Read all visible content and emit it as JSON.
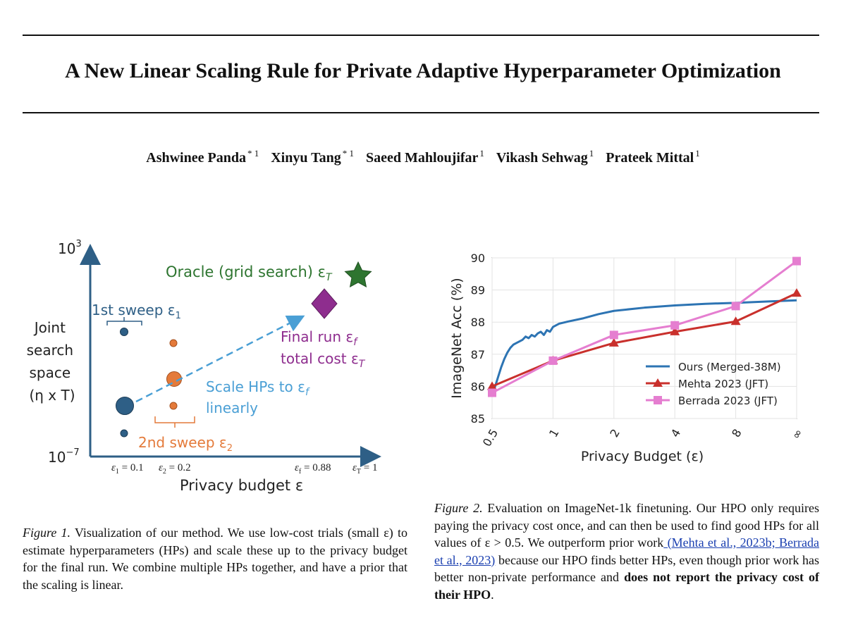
{
  "paper": {
    "title": "A New Linear Scaling Rule for Private Adaptive Hyperparameter Optimization",
    "authors": [
      {
        "name": "Ashwinee Panda",
        "affil": "* 1"
      },
      {
        "name": "Xinyu Tang",
        "affil": "* 1"
      },
      {
        "name": "Saeed Mahloujifar",
        "affil": "1"
      },
      {
        "name": "Vikash Sehwag",
        "affil": "1"
      },
      {
        "name": "Prateek Mittal",
        "affil": "1"
      }
    ]
  },
  "figure1": {
    "y_top_label": "10",
    "y_top_exp": "3",
    "y_bottom_label": "10",
    "y_bottom_exp": "−7",
    "y_axis_label": [
      "Joint",
      "search",
      "space",
      "(η x T)"
    ],
    "x_axis_label": "Privacy budget ε",
    "oracle_label": "Oracle (grid search) ε",
    "oracle_sub": "T",
    "sweep1_label": "1st sweep ε",
    "sweep1_sub": "1",
    "sweep2_label": "2nd sweep ε",
    "sweep2_sub": "2",
    "final_run_label": "Final run ε",
    "final_run_sub": "f",
    "total_cost_label": "total cost ε",
    "total_cost_sub": "T",
    "scale_label": "Scale HPs to ε",
    "scale_sub": "f",
    "linearly_label": "linearly",
    "x_ticks": [
      {
        "sym": "ε",
        "sub": "1",
        "val": " = 0.1"
      },
      {
        "sym": "ε",
        "sub": "2",
        "val": " = 0.2"
      },
      {
        "sym": "ε",
        "sub": "f",
        "val": " = 0.88"
      },
      {
        "sym": "ε",
        "sub": "T",
        "val": " = 1"
      }
    ],
    "colors": {
      "sweep1": "#2e5f86",
      "sweep2": "#e47a3a",
      "scale": "#4a9fd5",
      "final": "#8e2d8e",
      "oracle": "#2e7530",
      "axis": "#2e5f86"
    }
  },
  "chart_data": {
    "type": "line",
    "xlabel": "Privacy Budget (ε)",
    "ylabel": "ImageNet Acc (%)",
    "x_tick_labels": [
      "0.5",
      "1",
      "2",
      "4",
      "8",
      "∞"
    ],
    "x_positions": [
      0,
      1,
      2,
      3,
      4,
      5
    ],
    "ylim": [
      85,
      90
    ],
    "y_ticks": [
      85,
      86,
      87,
      88,
      89,
      90
    ],
    "grid": true,
    "legend_position": "lower-right",
    "series": [
      {
        "name": "Ours (Merged-38M)",
        "color": "#2d74b3",
        "marker": "none",
        "x": [
          0,
          0.05,
          0.1,
          0.15,
          0.2,
          0.25,
          0.3,
          0.35,
          0.4,
          0.45,
          0.5,
          0.55,
          0.6,
          0.65,
          0.7,
          0.75,
          0.8,
          0.85,
          0.9,
          0.95,
          1.0,
          1.1,
          1.25,
          1.5,
          1.75,
          2.0,
          2.5,
          3.0,
          3.5,
          4.0,
          4.5,
          5.0
        ],
        "y": [
          85.7,
          86.0,
          86.3,
          86.6,
          86.85,
          87.05,
          87.2,
          87.3,
          87.35,
          87.4,
          87.45,
          87.55,
          87.5,
          87.6,
          87.55,
          87.65,
          87.7,
          87.6,
          87.75,
          87.7,
          87.85,
          87.95,
          88.02,
          88.12,
          88.25,
          88.35,
          88.45,
          88.52,
          88.57,
          88.6,
          88.64,
          88.68
        ]
      },
      {
        "name": "Mehta 2023 (JFT)",
        "color": "#c9302c",
        "marker": "triangle",
        "x": [
          0,
          1,
          2,
          3,
          4,
          5
        ],
        "y": [
          86.0,
          86.8,
          87.35,
          87.7,
          88.02,
          88.9
        ]
      },
      {
        "name": "Berrada 2023 (JFT)",
        "color": "#e57ed0",
        "marker": "square",
        "x": [
          0,
          1,
          2,
          3,
          4,
          5
        ],
        "y": [
          85.8,
          86.8,
          87.6,
          87.9,
          88.5,
          89.9
        ]
      }
    ]
  },
  "captions": {
    "fig1_label": "Figure 1.",
    "fig1_text": "Visualization of our method.  We use low-cost trials (small ε) to estimate hyperparameters (HPs) and scale these up to the privacy budget for the final run. We combine multiple HPs together, and have a prior that the scaling is linear.",
    "fig2_label": "Figure 2.",
    "fig2_text_a": "Evaluation on ImageNet-1k finetuning. Our HPO only requires paying the privacy cost once, and can then be used to find good HPs for all values of ε > 0.5.  We outperform prior work",
    "fig2_link": " (Mehta et al., 2023b; Berrada et al., 2023)",
    "fig2_text_b": " because our HPO finds better HPs, even though prior work has better non-private performance and ",
    "fig2_bold": "does not report the privacy cost of their HPO",
    "fig2_end": "."
  }
}
